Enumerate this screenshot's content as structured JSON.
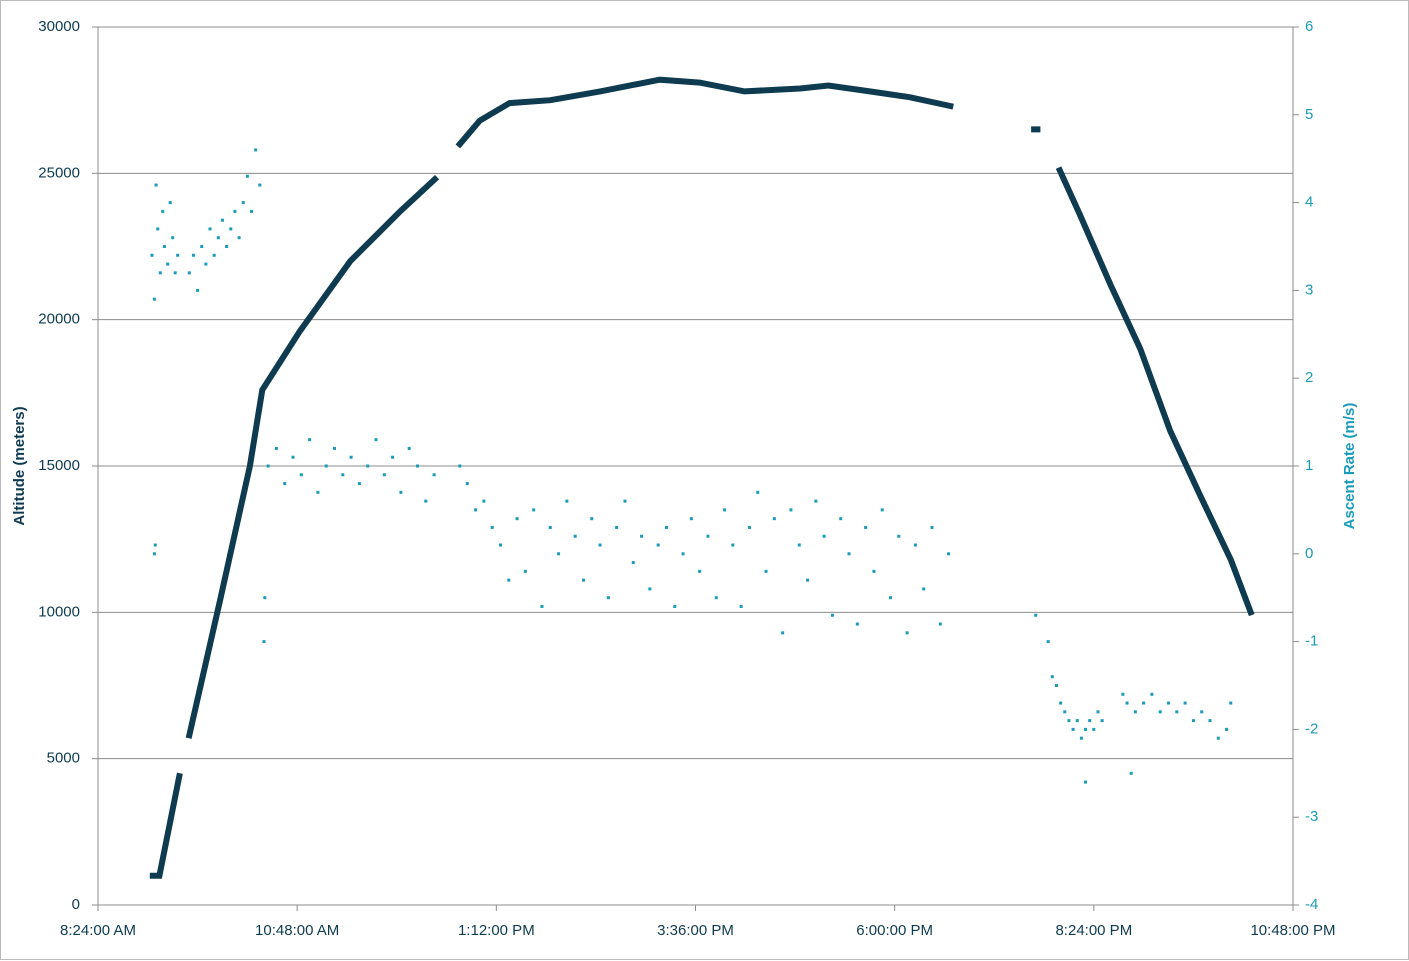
{
  "chart_data": {
    "type": "scatter",
    "y_label": "Altitude (meters)",
    "y2_label": "Ascent Rate (m/s)",
    "xlim": [
      8.4,
      22.8
    ],
    "xticks": [
      {
        "value": 8.4,
        "label": "8:24:00 AM"
      },
      {
        "value": 10.8,
        "label": "10:48:00 AM"
      },
      {
        "value": 13.2,
        "label": "1:12:00 PM"
      },
      {
        "value": 15.6,
        "label": "3:36:00 PM"
      },
      {
        "value": 18.0,
        "label": "6:00:00 PM"
      },
      {
        "value": 20.4,
        "label": "8:24:00 PM"
      },
      {
        "value": 22.8,
        "label": "10:48:00 PM"
      }
    ],
    "ylim": [
      0,
      30000
    ],
    "yticks": [
      0,
      5000,
      10000,
      15000,
      20000,
      25000,
      30000
    ],
    "y2lim": [
      -4,
      6
    ],
    "y2ticks": [
      -4,
      -3,
      -2,
      -1,
      0,
      1,
      2,
      3,
      4,
      5,
      6
    ],
    "grid": true,
    "series": [
      {
        "name": "Altitude",
        "color": "#0f3b50",
        "mode": "line",
        "x": [
          9.06,
          9.14,
          9.38,
          null,
          9.5,
          9.87,
          10.23,
          10.38,
          10.83,
          11.44,
          12.04,
          12.46,
          null,
          12.76,
          13.0,
          13.36,
          13.85,
          14.45,
          15.17,
          15.65,
          16.19,
          16.86,
          17.2,
          17.7,
          18.18,
          18.67,
          null,
          19.68,
          19.72,
          null,
          19.99,
          20.23,
          20.6,
          20.96,
          21.32,
          21.68,
          22.05,
          22.29
        ],
        "values": [
          1000,
          1000,
          4400,
          null,
          5800,
          10400,
          15000,
          17600,
          19600,
          22000,
          23700,
          24800,
          null,
          26000,
          26800,
          27400,
          27500,
          27800,
          28200,
          28100,
          27800,
          27900,
          28000,
          27800,
          27600,
          27300,
          null,
          26500,
          26500,
          null,
          25100,
          23600,
          21200,
          19000,
          16200,
          14000,
          11800,
          10000
        ]
      },
      {
        "name": "Ascent Rate",
        "color": "#1a9bba",
        "mode": "markers",
        "axis": "y2",
        "x": [
          9.05,
          9.08,
          9.1,
          9.12,
          9.15,
          9.18,
          9.2,
          9.24,
          9.27,
          9.3,
          9.33,
          9.36,
          9.08,
          9.09,
          9.5,
          9.55,
          9.6,
          9.65,
          9.7,
          9.75,
          9.8,
          9.85,
          9.9,
          9.95,
          10.0,
          10.05,
          10.1,
          10.15,
          10.2,
          10.25,
          10.3,
          10.35,
          10.4,
          10.41,
          10.45,
          10.55,
          10.65,
          10.75,
          10.85,
          10.95,
          11.05,
          11.15,
          11.25,
          11.35,
          11.45,
          11.55,
          11.65,
          11.75,
          11.85,
          11.95,
          12.05,
          12.15,
          12.25,
          12.35,
          12.45,
          12.76,
          12.85,
          12.95,
          13.05,
          13.15,
          13.25,
          13.35,
          13.45,
          13.55,
          13.65,
          13.75,
          13.85,
          13.95,
          14.05,
          14.15,
          14.25,
          14.35,
          14.45,
          14.55,
          14.65,
          14.75,
          14.85,
          14.95,
          15.05,
          15.15,
          15.25,
          15.35,
          15.45,
          15.55,
          15.65,
          15.75,
          15.85,
          15.95,
          16.05,
          16.15,
          16.25,
          16.35,
          16.45,
          16.55,
          16.65,
          16.75,
          16.85,
          16.95,
          17.05,
          17.15,
          17.25,
          17.35,
          17.45,
          17.55,
          17.65,
          17.75,
          17.85,
          17.95,
          18.05,
          18.15,
          18.25,
          18.35,
          18.45,
          18.55,
          18.65,
          19.7,
          19.85,
          19.9,
          19.95,
          20.0,
          20.05,
          20.1,
          20.15,
          20.2,
          20.25,
          20.3,
          20.35,
          20.4,
          20.45,
          20.5,
          20.3,
          20.75,
          20.8,
          20.9,
          21.0,
          21.1,
          21.2,
          21.3,
          21.4,
          21.5,
          21.6,
          21.7,
          21.8,
          21.9,
          22.0,
          22.05,
          20.85
        ],
        "values": [
          3.4,
          2.9,
          4.2,
          3.7,
          3.2,
          3.9,
          3.5,
          3.3,
          4.0,
          3.6,
          3.2,
          3.4,
          0.0,
          0.1,
          3.2,
          3.4,
          3.0,
          3.5,
          3.3,
          3.7,
          3.4,
          3.6,
          3.8,
          3.5,
          3.7,
          3.9,
          3.6,
          4.0,
          4.3,
          3.9,
          4.6,
          4.2,
          -1.0,
          -0.5,
          1.0,
          1.2,
          0.8,
          1.1,
          0.9,
          1.3,
          0.7,
          1.0,
          1.2,
          0.9,
          1.1,
          0.8,
          1.0,
          1.3,
          0.9,
          1.1,
          0.7,
          1.2,
          1.0,
          0.6,
          0.9,
          1.0,
          0.8,
          0.5,
          0.6,
          0.3,
          0.1,
          -0.3,
          0.4,
          -0.2,
          0.5,
          -0.6,
          0.3,
          0.0,
          0.6,
          0.2,
          -0.3,
          0.4,
          0.1,
          -0.5,
          0.3,
          0.6,
          -0.1,
          0.2,
          -0.4,
          0.1,
          0.3,
          -0.6,
          0.0,
          0.4,
          -0.2,
          0.2,
          -0.5,
          0.5,
          0.1,
          -0.6,
          0.3,
          0.7,
          -0.2,
          0.4,
          -0.9,
          0.5,
          0.1,
          -0.3,
          0.6,
          0.2,
          -0.7,
          0.4,
          0.0,
          -0.8,
          0.3,
          -0.2,
          0.5,
          -0.5,
          0.2,
          -0.9,
          0.1,
          -0.4,
          0.3,
          -0.8,
          0.0,
          -0.7,
          -1.0,
          -1.4,
          -1.5,
          -1.7,
          -1.8,
          -1.9,
          -2.0,
          -1.9,
          -2.1,
          -2.0,
          -1.9,
          -2.0,
          -1.8,
          -1.9,
          -2.6,
          -1.6,
          -1.7,
          -1.8,
          -1.7,
          -1.6,
          -1.8,
          -1.7,
          -1.8,
          -1.7,
          -1.9,
          -1.8,
          -1.9,
          -2.1,
          -2.0,
          -1.7,
          -2.5
        ]
      }
    ]
  }
}
